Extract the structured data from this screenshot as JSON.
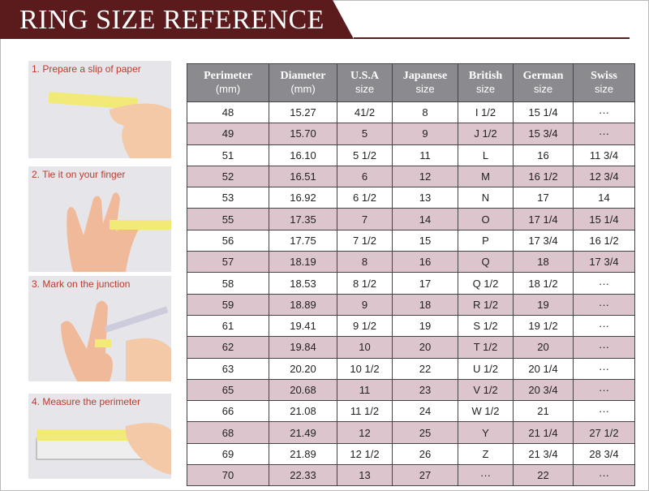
{
  "header": {
    "title": "RING SIZE REFERENCE"
  },
  "steps": [
    "1. Prepare a slip of paper",
    "2. Tie it on your finger",
    "3. Mark on the junction",
    "4. Measure the perimeter"
  ],
  "table": {
    "columns": [
      {
        "title": "Perimeter",
        "unit": "(mm)"
      },
      {
        "title": "Diameter",
        "unit": "(mm)"
      },
      {
        "title": "U.S.A",
        "unit": "size"
      },
      {
        "title": "Japanese",
        "unit": "size"
      },
      {
        "title": "British",
        "unit": "size"
      },
      {
        "title": "German",
        "unit": "size"
      },
      {
        "title": "Swiss",
        "unit": "size"
      }
    ],
    "rows": [
      [
        "48",
        "15.27",
        "41/2",
        "8",
        "I 1/2",
        "15 1/4",
        "···"
      ],
      [
        "49",
        "15.70",
        "5",
        "9",
        "J 1/2",
        "15 3/4",
        "···"
      ],
      [
        "51",
        "16.10",
        "5 1/2",
        "11",
        "L",
        "16",
        "11 3/4"
      ],
      [
        "52",
        "16.51",
        "6",
        "12",
        "M",
        "16 1/2",
        "12 3/4"
      ],
      [
        "53",
        "16.92",
        "6 1/2",
        "13",
        "N",
        "17",
        "14"
      ],
      [
        "55",
        "17.35",
        "7",
        "14",
        "O",
        "17 1/4",
        "15 1/4"
      ],
      [
        "56",
        "17.75",
        "7 1/2",
        "15",
        "P",
        "17 3/4",
        "16 1/2"
      ],
      [
        "57",
        "18.19",
        "8",
        "16",
        "Q",
        "18",
        "17 3/4"
      ],
      [
        "58",
        "18.53",
        "8 1/2",
        "17",
        "Q 1/2",
        "18 1/2",
        "···"
      ],
      [
        "59",
        "18.89",
        "9",
        "18",
        "R 1/2",
        "19",
        "···"
      ],
      [
        "61",
        "19.41",
        "9 1/2",
        "19",
        "S 1/2",
        "19 1/2",
        "···"
      ],
      [
        "62",
        "19.84",
        "10",
        "20",
        "T 1/2",
        "20",
        "···"
      ],
      [
        "63",
        "20.20",
        "10 1/2",
        "22",
        "U 1/2",
        "20 1/4",
        "···"
      ],
      [
        "65",
        "20.68",
        "11",
        "23",
        "V 1/2",
        "20 3/4",
        "···"
      ],
      [
        "66",
        "21.08",
        "11 1/2",
        "24",
        "W 1/2",
        "21",
        "···"
      ],
      [
        "68",
        "21.49",
        "12",
        "25",
        "Y",
        "21 1/4",
        "27 1/2"
      ],
      [
        "69",
        "21.89",
        "12 1/2",
        "26",
        "Z",
        "21 3/4",
        "28 3/4"
      ],
      [
        "70",
        "22.33",
        "13",
        "27",
        "···",
        "22",
        "···"
      ]
    ]
  }
}
